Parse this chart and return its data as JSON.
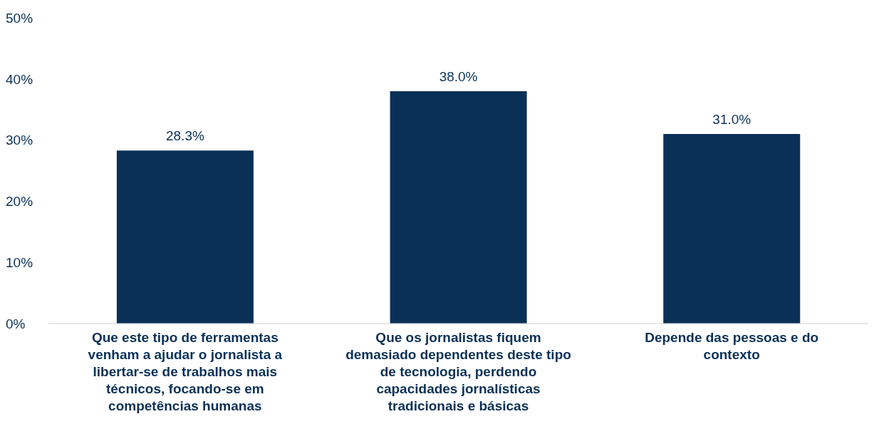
{
  "chart_data": {
    "type": "bar",
    "categories": [
      "Que este tipo de ferramentas venham a ajudar o jornalista a libertar-se de trabalhos mais técnicos, focando-se em competências humanas",
      "Que os jornalistas fiquem demasiado dependentes deste tipo de tecnologia, perdendo capacidades jornalísticas tradicionais e básicas",
      "Depende das pessoas e do contexto"
    ],
    "values": [
      28.3,
      38.0,
      31.0
    ],
    "value_labels": [
      "28.3%",
      "38.0%",
      "31.0%"
    ],
    "color": "#0a3057",
    "ylim": [
      0,
      50
    ],
    "yticks": [
      {
        "value": 0,
        "label": "0%"
      },
      {
        "value": 10,
        "label": "10%"
      },
      {
        "value": 20,
        "label": "20%"
      },
      {
        "value": 30,
        "label": "30%"
      },
      {
        "value": 40,
        "label": "40%"
      },
      {
        "value": 50,
        "label": "50%"
      }
    ],
    "grid": false,
    "legend": false
  }
}
